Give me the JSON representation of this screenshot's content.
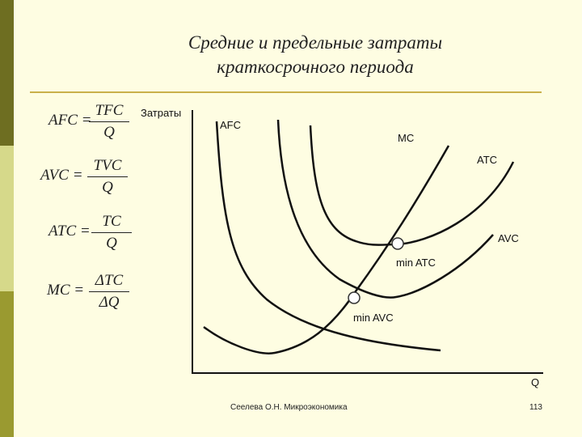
{
  "title": {
    "line1": "Средние и предельные затраты",
    "line2": "краткосрочного периода"
  },
  "formulas": [
    {
      "lhs": "AFC =",
      "num": "TFC",
      "den": "Q"
    },
    {
      "lhs": "AVC =",
      "num": "TVC",
      "den": "Q"
    },
    {
      "lhs": "ATC =",
      "num": "TC",
      "den": "Q"
    },
    {
      "lhs": "MC =",
      "num": "ΔTC",
      "den": "ΔQ"
    }
  ],
  "axes": {
    "y_label": "Затраты",
    "x_label": "Q"
  },
  "curve_labels": {
    "afc": "AFC",
    "mc": "MC",
    "atc": "ATC",
    "avc": "AVC"
  },
  "points": {
    "min_atc": "min ATC",
    "min_avc": "min AVC"
  },
  "footer": {
    "author": "Сеелева О.Н. Микроэкономика",
    "page": "113"
  },
  "colors": {
    "background": "#fefde2",
    "sidebar_dark": "#6e6e21",
    "sidebar_mid": "#9a9a30",
    "sidebar_light": "#d6d98a",
    "rule": "#c9b04a"
  }
}
